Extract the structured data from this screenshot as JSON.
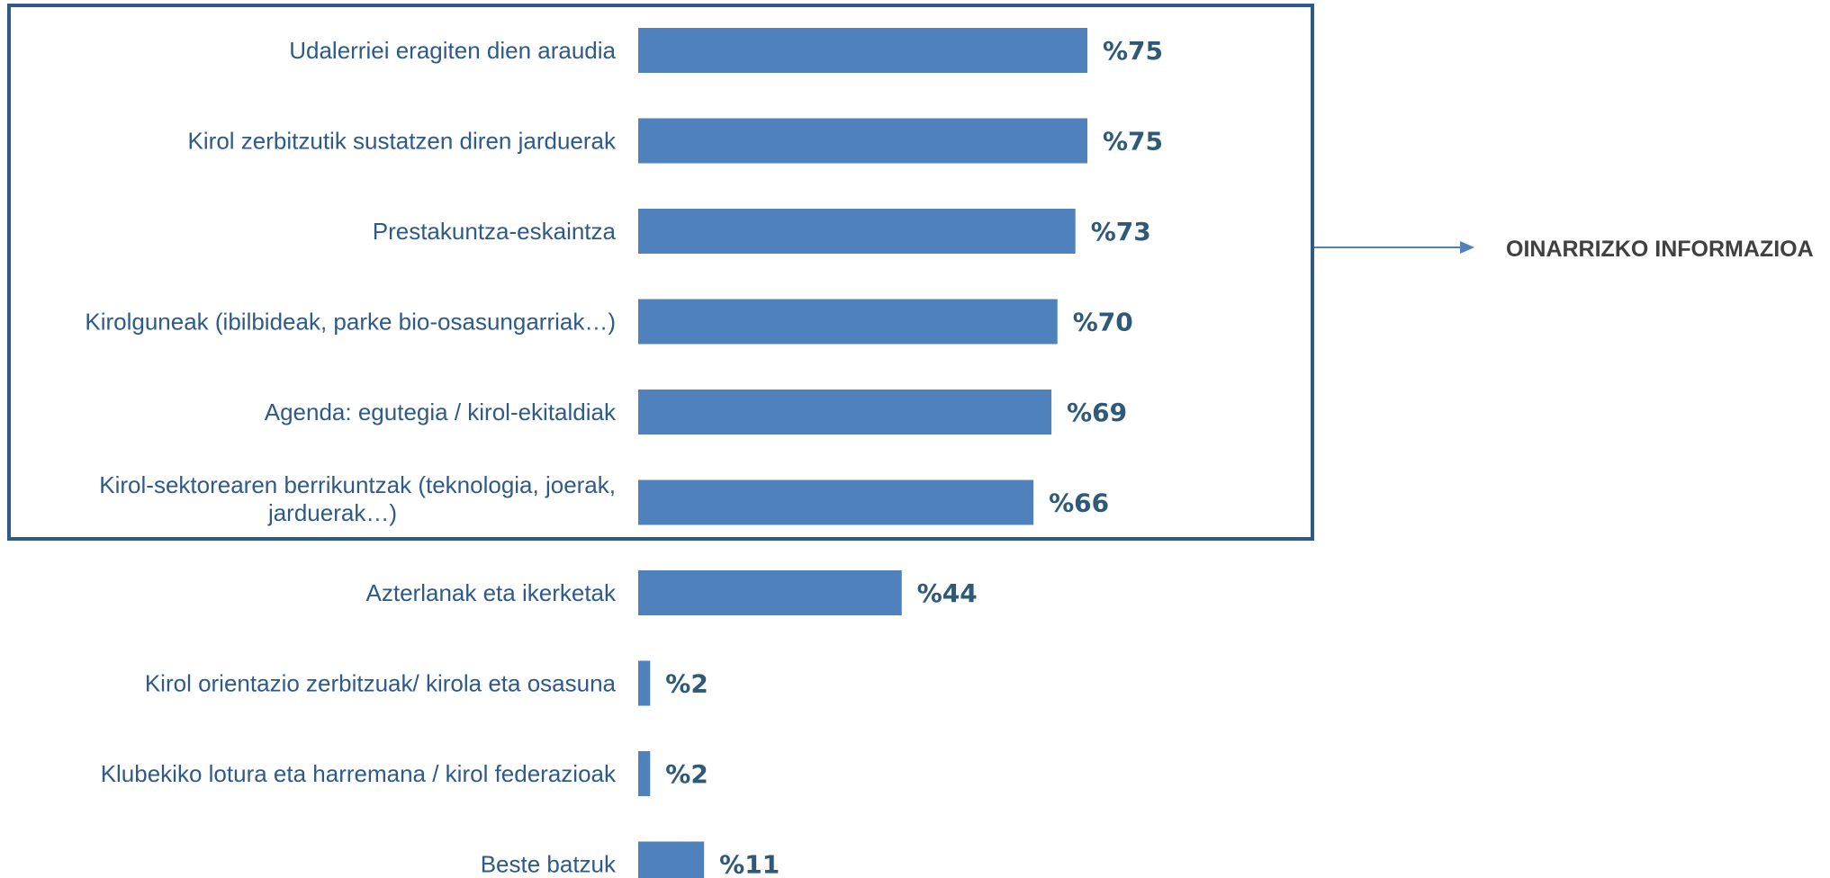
{
  "chart_data": {
    "type": "bar",
    "orientation": "horizontal",
    "categories": [
      [
        "Udalerriei eragiten dien araudia"
      ],
      [
        "Kirol zerbitzutik sustatzen diren jarduerak"
      ],
      [
        "Prestakuntza-eskaintza"
      ],
      [
        "Kirolguneak (ibilbideak, parke bio-osasungarriak…)"
      ],
      [
        "Agenda: egutegia / kirol-ekitaldiak"
      ],
      [
        "Kirol-sektorearen berrikuntzak  (teknologia, joerak,",
        "jarduerak…)"
      ],
      [
        "Azterlanak eta ikerketak"
      ],
      [
        "Kirol orientazio zerbitzuak/ kirola eta osasuna"
      ],
      [
        "Klubekiko lotura eta harremana / kirol federazioak"
      ],
      [
        "Beste batzuk"
      ]
    ],
    "values": [
      75,
      75,
      73,
      70,
      69,
      66,
      44,
      2,
      2,
      11
    ],
    "value_labels": [
      "%75",
      "%75",
      "%73",
      "%70",
      "%69",
      "%66",
      "%44",
      "%2",
      "%2",
      "%11"
    ],
    "bar_color": "#4f81bd",
    "xlim": [
      0,
      100
    ],
    "grid": false,
    "legend": false,
    "highlight_group": {
      "first_index": 0,
      "last_index": 5,
      "label": "OINARRIZKO INFORMAZIOA",
      "border_color": "#2e5a8a",
      "arrow_color": "#4f81bd"
    }
  }
}
